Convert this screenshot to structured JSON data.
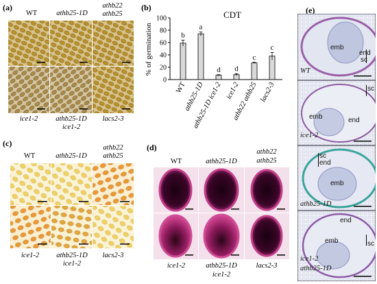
{
  "panels": {
    "a": {
      "label": "(a)",
      "top_labels": [
        "WT",
        "athb25-1D",
        "athb22",
        "athb25"
      ],
      "bottom_labels": [
        "ice1-2",
        "athb25-1D",
        "ice1-2",
        "lacs2-3"
      ]
    },
    "b": {
      "label": "(b)",
      "title": "CDT",
      "ylabel": "% of germination",
      "yticks": [
        "0",
        "20",
        "40",
        "60",
        "80",
        "100"
      ],
      "categories": [
        "WT",
        "athb25-1D",
        "athb25-1D ice1-2",
        "ice1-2",
        "athb22 athb25",
        "lacs2-3"
      ],
      "letters": [
        "b",
        "a",
        "d",
        "d",
        "c",
        "c"
      ]
    },
    "c": {
      "label": "(c)",
      "top_labels": [
        "WT",
        "athb25-1D",
        "athb22",
        "athb25"
      ],
      "bottom_labels": [
        "ice1-2",
        "athb25-1D",
        "ice1-2",
        "lacs2-3"
      ]
    },
    "d": {
      "label": "(d)",
      "top_labels": [
        "WT",
        "athb25-1D",
        "athb22",
        "athb25"
      ],
      "bottom_labels": [
        "ice1-2",
        "athb25-1D",
        "ice1-2",
        "lacs2-3"
      ]
    },
    "e": {
      "label": "(e)",
      "rows": [
        {
          "genotype": "WT",
          "tissue": [
            "emb",
            "end",
            "sc"
          ]
        },
        {
          "genotype": "ice1-2",
          "tissue": [
            "emb",
            "end",
            "sc"
          ]
        },
        {
          "genotype": "athb25-1D",
          "tissue": [
            "sc",
            "end",
            "emb"
          ]
        },
        {
          "genotype": "ice1-2",
          "genotype2": "athb25-1D",
          "tissue": [
            "end",
            "emb",
            "sc"
          ]
        }
      ]
    }
  },
  "chart_data": {
    "type": "bar",
    "title": "CDT",
    "xlabel": "",
    "ylabel": "% of germination",
    "ylim": [
      0,
      100
    ],
    "categories": [
      "WT",
      "athb25-1D",
      "athb25-1D ice1-2",
      "ice1-2",
      "athb22 athb25",
      "lacs2-3"
    ],
    "values": [
      59,
      74,
      7,
      8,
      27,
      38
    ],
    "errors": [
      5,
      3,
      1,
      1.5,
      1,
      6
    ],
    "letters": [
      "b",
      "a",
      "d",
      "d",
      "c",
      "c"
    ]
  }
}
